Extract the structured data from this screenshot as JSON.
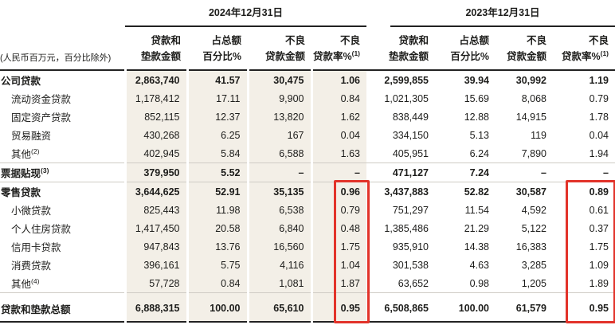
{
  "header": {
    "unit_note": "(人民币百万元，百分比除外)",
    "periods": [
      "2024年12月31日",
      "2023年12月31日"
    ],
    "columns": [
      {
        "l1": "贷款和",
        "l2": "垫款金额"
      },
      {
        "l1": "占总额",
        "l2": "百分比%"
      },
      {
        "l1": "不良",
        "l2": "贷款金额"
      },
      {
        "l1": "不良",
        "l2": "贷款率%",
        "sup": "(1)"
      }
    ]
  },
  "rows": [
    {
      "label": "公司贷款",
      "sup": "",
      "style": "section",
      "sep_after": false,
      "cells": [
        "2,863,740",
        "41.57",
        "30,475",
        "1.06",
        "2,599,855",
        "39.94",
        "30,992",
        "1.19"
      ]
    },
    {
      "label": "流动资金贷款",
      "sup": "",
      "style": "sub",
      "sep_after": false,
      "cells": [
        "1,178,412",
        "17.11",
        "9,900",
        "0.84",
        "1,021,305",
        "15.69",
        "8,068",
        "0.79"
      ]
    },
    {
      "label": "固定资产贷款",
      "sup": "",
      "style": "sub",
      "sep_after": false,
      "cells": [
        "852,115",
        "12.37",
        "13,820",
        "1.62",
        "838,449",
        "12.88",
        "14,915",
        "1.78"
      ]
    },
    {
      "label": "贸易融资",
      "sup": "",
      "style": "sub",
      "sep_after": false,
      "cells": [
        "430,268",
        "6.25",
        "167",
        "0.04",
        "334,150",
        "5.13",
        "119",
        "0.04"
      ]
    },
    {
      "label": "其他",
      "sup": "(2)",
      "style": "sub",
      "sep_after": true,
      "cells": [
        "402,945",
        "5.84",
        "6,588",
        "1.63",
        "405,951",
        "6.24",
        "7,890",
        "1.94"
      ]
    },
    {
      "label": "票据贴现",
      "sup": "(3)",
      "style": "section",
      "sep_after": true,
      "cells": [
        "379,950",
        "5.52",
        "–",
        "–",
        "471,127",
        "7.24",
        "–",
        "–"
      ]
    },
    {
      "label": "零售贷款",
      "sup": "",
      "style": "section",
      "sep_after": false,
      "cells": [
        "3,644,625",
        "52.91",
        "35,135",
        "0.96",
        "3,437,883",
        "52.82",
        "30,587",
        "0.89"
      ]
    },
    {
      "label": "小微贷款",
      "sup": "",
      "style": "sub",
      "sep_after": false,
      "cells": [
        "825,443",
        "11.98",
        "6,538",
        "0.79",
        "751,297",
        "11.54",
        "4,592",
        "0.61"
      ]
    },
    {
      "label": "个人住房贷款",
      "sup": "",
      "style": "sub",
      "sep_after": false,
      "cells": [
        "1,417,450",
        "20.58",
        "6,840",
        "0.48",
        "1,385,486",
        "21.29",
        "5,122",
        "0.37"
      ]
    },
    {
      "label": "信用卡贷款",
      "sup": "",
      "style": "sub",
      "sep_after": false,
      "cells": [
        "947,843",
        "13.76",
        "16,560",
        "1.75",
        "935,910",
        "14.38",
        "16,383",
        "1.75"
      ]
    },
    {
      "label": "消费贷款",
      "sup": "",
      "style": "sub",
      "sep_after": false,
      "cells": [
        "396,161",
        "5.75",
        "4,116",
        "1.04",
        "301,538",
        "4.63",
        "3,285",
        "1.09"
      ]
    },
    {
      "label": "其他",
      "sup": "(4)",
      "style": "sub",
      "sep_after": true,
      "cells": [
        "57,728",
        "0.84",
        "1,081",
        "1.87",
        "63,652",
        "0.98",
        "1,205",
        "1.89"
      ]
    },
    {
      "label": "贷款和垫款总额",
      "sup": "",
      "style": "total",
      "sep_after": false,
      "cells": [
        "6,888,315",
        "100.00",
        "65,610",
        "0.95",
        "6,508,865",
        "100.00",
        "61,579",
        "0.95"
      ]
    }
  ],
  "colors": {
    "highlight_red": "#e2332a",
    "shade_2024_column": "#f3efe7",
    "rule_dark": "#222222",
    "rule_light": "#cfccc5"
  }
}
